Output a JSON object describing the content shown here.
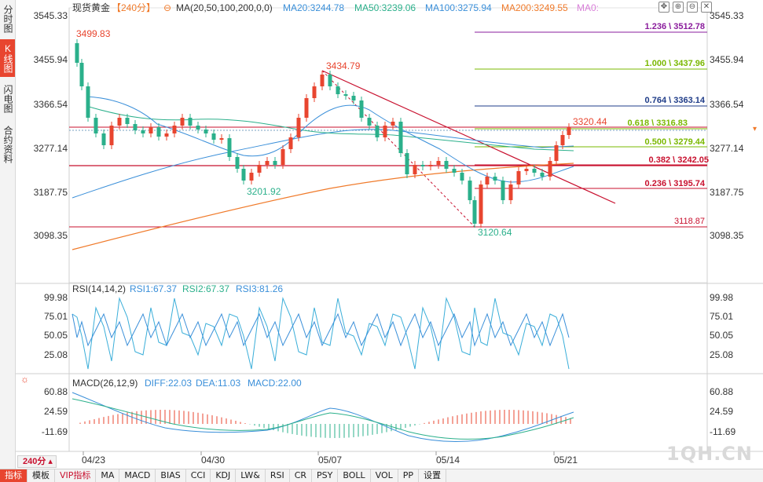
{
  "side_tabs": [
    {
      "label": "分时图",
      "active": false
    },
    {
      "label": "K线图",
      "active": true
    },
    {
      "label": "闪电图",
      "active": false
    },
    {
      "label": "合约资料",
      "active": false
    }
  ],
  "header": {
    "instrument": "现货黄金",
    "period": "【240分】",
    "ma_label": "MA(20,50,100,200,0,0)",
    "ma20": "MA20:3244.78",
    "ma50": "MA50:3239.06",
    "ma100": "MA100:3275.94",
    "ma200": "MA200:3249.55",
    "ma0": "MA0:"
  },
  "toolbar": {
    "fit": "✥",
    "zoom_in": "⊕",
    "zoom_out": "⊖",
    "close": "✕"
  },
  "price_axis": [
    "3545.33",
    "3455.94",
    "3366.54",
    "3277.14",
    "3187.75",
    "3098.35"
  ],
  "price_labels": {
    "high": "3499.83",
    "peak2": "3434.79",
    "low1": "3201.92",
    "low2": "3120.64",
    "last": "3320.44"
  },
  "fib_labels": [
    "1.236 \\ 3512.78",
    "1.000 \\ 3437.96",
    "0.764 \\ 3363.14",
    "0.618 \\ 3316.83",
    "0.500 \\ 3279.44",
    "0.382 \\ 3242.05",
    "0.236 \\ 3195.74",
    "3118.87"
  ],
  "rsi": {
    "label": "RSI(14,14,2)",
    "rsi1": "RSI1:67.37",
    "rsi2": "RSI2:67.37",
    "rsi3": "RSI3:81.26",
    "axis": [
      "99.98",
      "75.01",
      "50.05",
      "25.08"
    ]
  },
  "macd": {
    "label": "MACD(26,12,9)",
    "diff": "DIFF:22.03",
    "dea": "DEA:11.03",
    "macd": "MACD:22.00",
    "axis": [
      "60.88",
      "24.59",
      "-11.69"
    ]
  },
  "dates": [
    "04/23",
    "04/30",
    "05/07",
    "05/14",
    "05/21"
  ],
  "period_box": "240分 ▴",
  "bottom_tabs": [
    {
      "label": "指标",
      "active": true
    },
    {
      "label": "模板"
    },
    {
      "label": "VIP指标",
      "vip": true
    },
    {
      "label": "MA"
    },
    {
      "label": "MACD"
    },
    {
      "label": "BIAS"
    },
    {
      "label": "CCI"
    },
    {
      "label": "KDJ"
    },
    {
      "label": "LW&"
    },
    {
      "label": "RSI"
    },
    {
      "label": "CR"
    },
    {
      "label": "PSY"
    },
    {
      "label": "BOLL"
    },
    {
      "label": "VOL"
    },
    {
      "label": "PP"
    },
    {
      "label": "设置"
    }
  ],
  "watermark": "1QH.CN",
  "colors": {
    "up": "#e8452f",
    "down": "#2bb08b",
    "ma20": "#3a8fd9",
    "ma50": "#2bb08b",
    "ma100": "#3a8fd9",
    "ma200": "#f07a2a",
    "axis_text": "#333",
    "fib_red": "#c8102e",
    "fib_green": "#7ab800",
    "fib_blue": "#1f3c88",
    "fib_purple": "#8a1c9c"
  }
}
